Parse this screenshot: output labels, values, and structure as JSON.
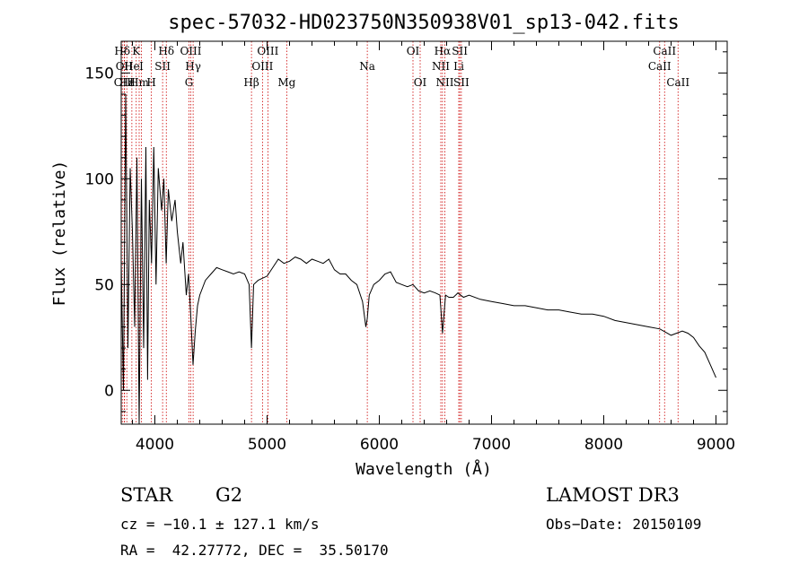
{
  "chart_data": {
    "type": "line",
    "title": "spec-57032-HD023750N350938V01_sp13-042.fits",
    "xlabel": "Wavelength (Å)",
    "ylabel": "Flux (relative)",
    "xlim": [
      3700,
      9100
    ],
    "ylim": [
      -16,
      165
    ],
    "xticks": [
      4000,
      5000,
      6000,
      7000,
      8000,
      9000
    ],
    "yticks": [
      0,
      50,
      100,
      150
    ],
    "grid": false,
    "colors": {
      "spectrum": "#000000",
      "line_marker": "#cc0000",
      "axes": "#000000"
    },
    "spectrum": {
      "name": "flux",
      "x": [
        3700,
        3720,
        3740,
        3760,
        3780,
        3800,
        3820,
        3840,
        3860,
        3880,
        3900,
        3920,
        3935,
        3950,
        3970,
        3990,
        4010,
        4030,
        4060,
        4080,
        4101,
        4120,
        4150,
        4180,
        4200,
        4230,
        4250,
        4280,
        4300,
        4320,
        4340,
        4360,
        4380,
        4400,
        4450,
        4500,
        4550,
        4600,
        4650,
        4700,
        4750,
        4800,
        4840,
        4861,
        4880,
        4920,
        4960,
        5000,
        5050,
        5100,
        5150,
        5200,
        5250,
        5300,
        5350,
        5400,
        5450,
        5500,
        5550,
        5600,
        5650,
        5700,
        5750,
        5800,
        5850,
        5880,
        5893,
        5910,
        5950,
        6000,
        6050,
        6100,
        6150,
        6200,
        6250,
        6300,
        6350,
        6400,
        6450,
        6500,
        6540,
        6563,
        6590,
        6620,
        6660,
        6700,
        6750,
        6800,
        6900,
        7000,
        7100,
        7200,
        7300,
        7400,
        7500,
        7600,
        7700,
        7800,
        7900,
        8000,
        8100,
        8200,
        8300,
        8400,
        8500,
        8600,
        8700,
        8750,
        8800,
        8850,
        8900,
        8950,
        9000
      ],
      "y": [
        60,
        0,
        140,
        20,
        105,
        75,
        30,
        110,
        -16,
        100,
        20,
        115,
        5,
        90,
        60,
        115,
        50,
        105,
        85,
        100,
        60,
        95,
        80,
        90,
        75,
        60,
        70,
        45,
        55,
        35,
        12,
        28,
        40,
        45,
        52,
        55,
        58,
        57,
        56,
        55,
        56,
        55,
        50,
        20,
        50,
        52,
        53,
        54,
        58,
        62,
        60,
        61,
        63,
        62,
        60,
        62,
        61,
        60,
        62,
        57,
        55,
        55,
        52,
        50,
        42,
        30,
        34,
        45,
        50,
        52,
        55,
        56,
        51,
        50,
        49,
        50,
        47,
        46,
        47,
        46,
        45,
        27,
        45,
        44,
        44,
        46,
        44,
        45,
        43,
        42,
        41,
        40,
        40,
        39,
        38,
        38,
        37,
        36,
        36,
        35,
        33,
        32,
        31,
        30,
        29,
        26,
        28,
        27,
        25,
        21,
        18,
        12,
        6
      ]
    },
    "lines": [
      {
        "label": "Hδ",
        "x": 3710,
        "row": 0
      },
      {
        "label": "OII",
        "x": 3727,
        "row": 1
      },
      {
        "label": "OIII",
        "x": 3730,
        "row": 2
      },
      {
        "label": "Hε",
        "x": 3750,
        "row": 2
      },
      {
        "label": "He",
        "x": 3795,
        "row": 1
      },
      {
        "label": "K",
        "x": 3834,
        "row": 0
      },
      {
        "label": "Hm",
        "x": 3860,
        "row": 2
      },
      {
        "label": "H",
        "x": 3969,
        "row": 2
      },
      {
        "label": "I",
        "x": 3880,
        "row": 1
      },
      {
        "label": "SII",
        "x": 4069,
        "row": 1
      },
      {
        "label": "Hδ",
        "x": 4102,
        "row": 0
      },
      {
        "label": "OIII",
        "x": 4320,
        "row": 0
      },
      {
        "label": "Hγ",
        "x": 4341,
        "row": 1
      },
      {
        "label": "G",
        "x": 4304,
        "row": 2
      },
      {
        "label": "Hβ",
        "x": 4861,
        "row": 2
      },
      {
        "label": "OIII",
        "x": 5007,
        "row": 0
      },
      {
        "label": "OIII",
        "x": 4959,
        "row": 1
      },
      {
        "label": "Mg",
        "x": 5175,
        "row": 2
      },
      {
        "label": "Na",
        "x": 5893,
        "row": 1
      },
      {
        "label": "OI",
        "x": 6300,
        "row": 0
      },
      {
        "label": "OI",
        "x": 6364,
        "row": 2
      },
      {
        "label": "Hα",
        "x": 6563,
        "row": 0
      },
      {
        "label": "NII",
        "x": 6548,
        "row": 1
      },
      {
        "label": "NII",
        "x": 6584,
        "row": 2
      },
      {
        "label": "SII",
        "x": 6717,
        "row": 0
      },
      {
        "label": "Li",
        "x": 6708,
        "row": 1
      },
      {
        "label": "SII",
        "x": 6731,
        "row": 2
      },
      {
        "label": "CaII",
        "x": 8542,
        "row": 0
      },
      {
        "label": "CaII",
        "x": 8498,
        "row": 1
      },
      {
        "label": "CaII",
        "x": 8662,
        "row": 2
      }
    ]
  },
  "info": {
    "object_type": "STAR",
    "spectral_class": "G2",
    "survey": "LAMOST DR3",
    "redshift": "cz = −10.1 ± 127.1 km/s",
    "obs_date": "Obs−Date: 20150109",
    "coords": "RA =  42.27772, DEC =  35.50170"
  }
}
